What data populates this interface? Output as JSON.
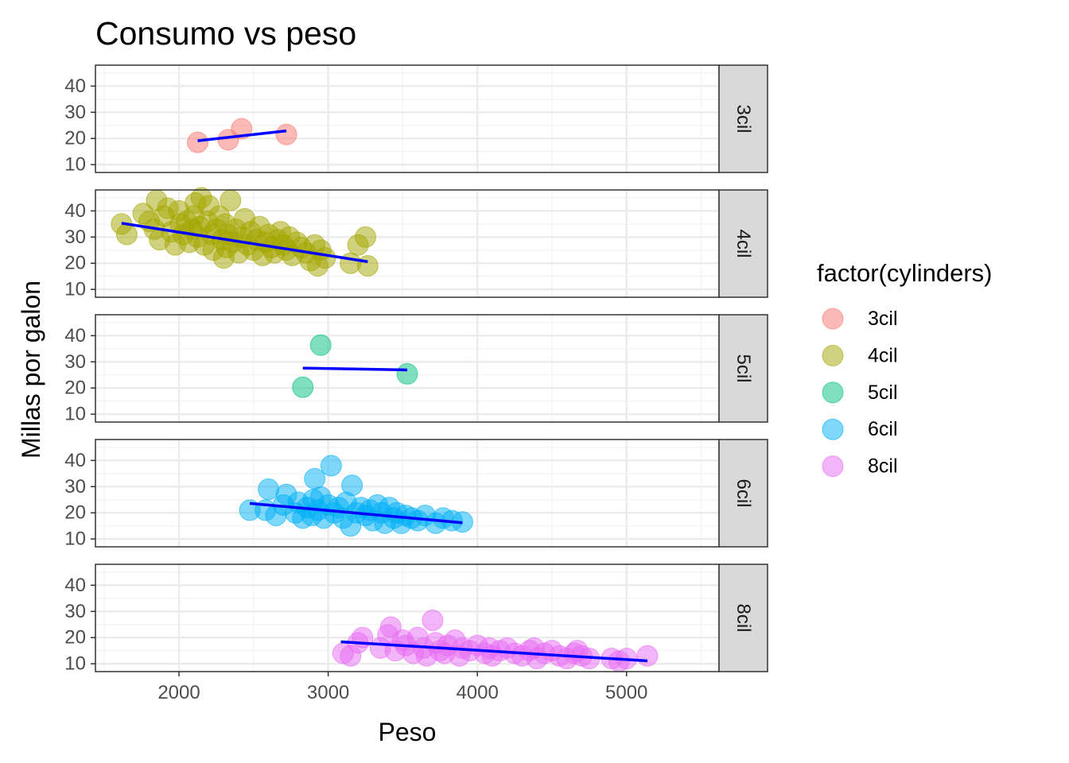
{
  "chart_data": {
    "type": "scatter",
    "title": "Consumo vs peso",
    "xlabel": "Peso",
    "ylabel": "Millas por galon",
    "facet_layout": "rows",
    "x_ticks": [
      2000,
      3000,
      4000,
      5000
    ],
    "y_ticks": [
      10,
      20,
      30,
      40
    ],
    "xlim": [
      1440,
      5620
    ],
    "ylim": [
      7,
      48
    ],
    "legend": {
      "title": "factor(cylinders)",
      "position": "right",
      "entries": [
        "3cil",
        "4cil",
        "5cil",
        "6cil",
        "8cil"
      ]
    },
    "trend_line_color": "#0000ff",
    "panels": [
      {
        "name": "3cil",
        "color": "#F8766D",
        "points": [
          [
            2125,
            18.5
          ],
          [
            2330,
            19.5
          ],
          [
            2420,
            23.7
          ],
          [
            2720,
            21.5
          ]
        ],
        "trend": [
          [
            2125,
            19.1
          ],
          [
            2720,
            22.9
          ]
        ]
      },
      {
        "name": "4cil",
        "color": "#A3A500",
        "points": [
          [
            1615,
            35
          ],
          [
            1650,
            31
          ],
          [
            1760,
            39
          ],
          [
            1800,
            36
          ],
          [
            1835,
            33
          ],
          [
            1850,
            44
          ],
          [
            1870,
            29
          ],
          [
            1900,
            38
          ],
          [
            1925,
            41
          ],
          [
            1950,
            32
          ],
          [
            1975,
            27
          ],
          [
            2000,
            40
          ],
          [
            2010,
            35
          ],
          [
            2030,
            31
          ],
          [
            2050,
            36
          ],
          [
            2070,
            28
          ],
          [
            2090,
            33
          ],
          [
            2100,
            38
          ],
          [
            2110,
            43
          ],
          [
            2125,
            30
          ],
          [
            2140,
            34
          ],
          [
            2150,
            45
          ],
          [
            2170,
            27
          ],
          [
            2190,
            36
          ],
          [
            2200,
            42
          ],
          [
            2220,
            31
          ],
          [
            2230,
            25
          ],
          [
            2250,
            33
          ],
          [
            2270,
            38
          ],
          [
            2290,
            29
          ],
          [
            2300,
            22
          ],
          [
            2310,
            35
          ],
          [
            2320,
            26
          ],
          [
            2330,
            31
          ],
          [
            2345,
            44
          ],
          [
            2360,
            28
          ],
          [
            2380,
            33
          ],
          [
            2400,
            24
          ],
          [
            2420,
            30
          ],
          [
            2440,
            37
          ],
          [
            2460,
            27
          ],
          [
            2480,
            32
          ],
          [
            2500,
            25
          ],
          [
            2520,
            29
          ],
          [
            2540,
            34
          ],
          [
            2560,
            23
          ],
          [
            2580,
            28
          ],
          [
            2600,
            31
          ],
          [
            2620,
            26
          ],
          [
            2640,
            24
          ],
          [
            2660,
            29
          ],
          [
            2680,
            32
          ],
          [
            2700,
            27
          ],
          [
            2720,
            25
          ],
          [
            2740,
            30
          ],
          [
            2760,
            23
          ],
          [
            2790,
            28
          ],
          [
            2820,
            26
          ],
          [
            2850,
            24
          ],
          [
            2880,
            21
          ],
          [
            2910,
            27
          ],
          [
            2930,
            19
          ],
          [
            2950,
            25
          ],
          [
            2980,
            22
          ],
          [
            3150,
            20
          ],
          [
            3200,
            27
          ],
          [
            3250,
            30
          ],
          [
            3265,
            19
          ]
        ],
        "trend": [
          [
            1615,
            35.3
          ],
          [
            3265,
            20.6
          ]
        ]
      },
      {
        "name": "5cil",
        "color": "#00BF7D",
        "points": [
          [
            2830,
            20.3
          ],
          [
            2950,
            36.4
          ],
          [
            3530,
            25.4
          ]
        ],
        "trend": [
          [
            2830,
            27.6
          ],
          [
            3530,
            26.9
          ]
        ]
      },
      {
        "name": "6cil",
        "color": "#00B0F6",
        "points": [
          [
            2475,
            21
          ],
          [
            2580,
            21
          ],
          [
            2600,
            29
          ],
          [
            2650,
            19
          ],
          [
            2700,
            23
          ],
          [
            2720,
            27
          ],
          [
            2780,
            20
          ],
          [
            2800,
            24
          ],
          [
            2830,
            18
          ],
          [
            2860,
            22
          ],
          [
            2890,
            19
          ],
          [
            2900,
            25
          ],
          [
            2910,
            33
          ],
          [
            2930,
            21
          ],
          [
            2950,
            26
          ],
          [
            2970,
            18
          ],
          [
            3000,
            23
          ],
          [
            3020,
            38
          ],
          [
            3040,
            20
          ],
          [
            3070,
            22
          ],
          [
            3100,
            18
          ],
          [
            3120,
            24
          ],
          [
            3150,
            15
          ],
          [
            3160,
            30.5
          ],
          [
            3190,
            20
          ],
          [
            3220,
            22
          ],
          [
            3250,
            19
          ],
          [
            3280,
            21
          ],
          [
            3300,
            17
          ],
          [
            3330,
            23
          ],
          [
            3360,
            20
          ],
          [
            3380,
            16
          ],
          [
            3410,
            22
          ],
          [
            3440,
            18
          ],
          [
            3460,
            20
          ],
          [
            3490,
            16
          ],
          [
            3520,
            19
          ],
          [
            3560,
            18
          ],
          [
            3600,
            17
          ],
          [
            3650,
            19
          ],
          [
            3720,
            16
          ],
          [
            3770,
            18
          ],
          [
            3830,
            17
          ],
          [
            3900,
            16.5
          ]
        ],
        "trend": [
          [
            2475,
            23.6
          ],
          [
            3900,
            16.2
          ]
        ]
      },
      {
        "name": "8cil",
        "color": "#E76BF3",
        "points": [
          [
            3100,
            14
          ],
          [
            3150,
            13
          ],
          [
            3200,
            18
          ],
          [
            3230,
            20
          ],
          [
            3350,
            16
          ],
          [
            3400,
            21
          ],
          [
            3420,
            24
          ],
          [
            3450,
            15
          ],
          [
            3500,
            19
          ],
          [
            3520,
            17
          ],
          [
            3570,
            14
          ],
          [
            3600,
            20
          ],
          [
            3640,
            16
          ],
          [
            3660,
            13
          ],
          [
            3700,
            26.6
          ],
          [
            3720,
            18
          ],
          [
            3750,
            15
          ],
          [
            3780,
            14
          ],
          [
            3800,
            17
          ],
          [
            3850,
            19
          ],
          [
            3880,
            13
          ],
          [
            3900,
            16
          ],
          [
            3950,
            15
          ],
          [
            4000,
            17
          ],
          [
            4050,
            14
          ],
          [
            4080,
            16
          ],
          [
            4100,
            13
          ],
          [
            4150,
            15
          ],
          [
            4200,
            16
          ],
          [
            4250,
            14
          ],
          [
            4300,
            13
          ],
          [
            4350,
            15
          ],
          [
            4380,
            16
          ],
          [
            4400,
            12
          ],
          [
            4450,
            14
          ],
          [
            4500,
            15
          ],
          [
            4550,
            13
          ],
          [
            4600,
            12
          ],
          [
            4650,
            14
          ],
          [
            4670,
            15
          ],
          [
            4700,
            13
          ],
          [
            4750,
            12
          ],
          [
            4900,
            12
          ],
          [
            4950,
            11
          ],
          [
            5000,
            12
          ],
          [
            5140,
            13
          ]
        ],
        "trend": [
          [
            3085,
            18.4
          ],
          [
            5140,
            11.1
          ]
        ]
      }
    ]
  }
}
